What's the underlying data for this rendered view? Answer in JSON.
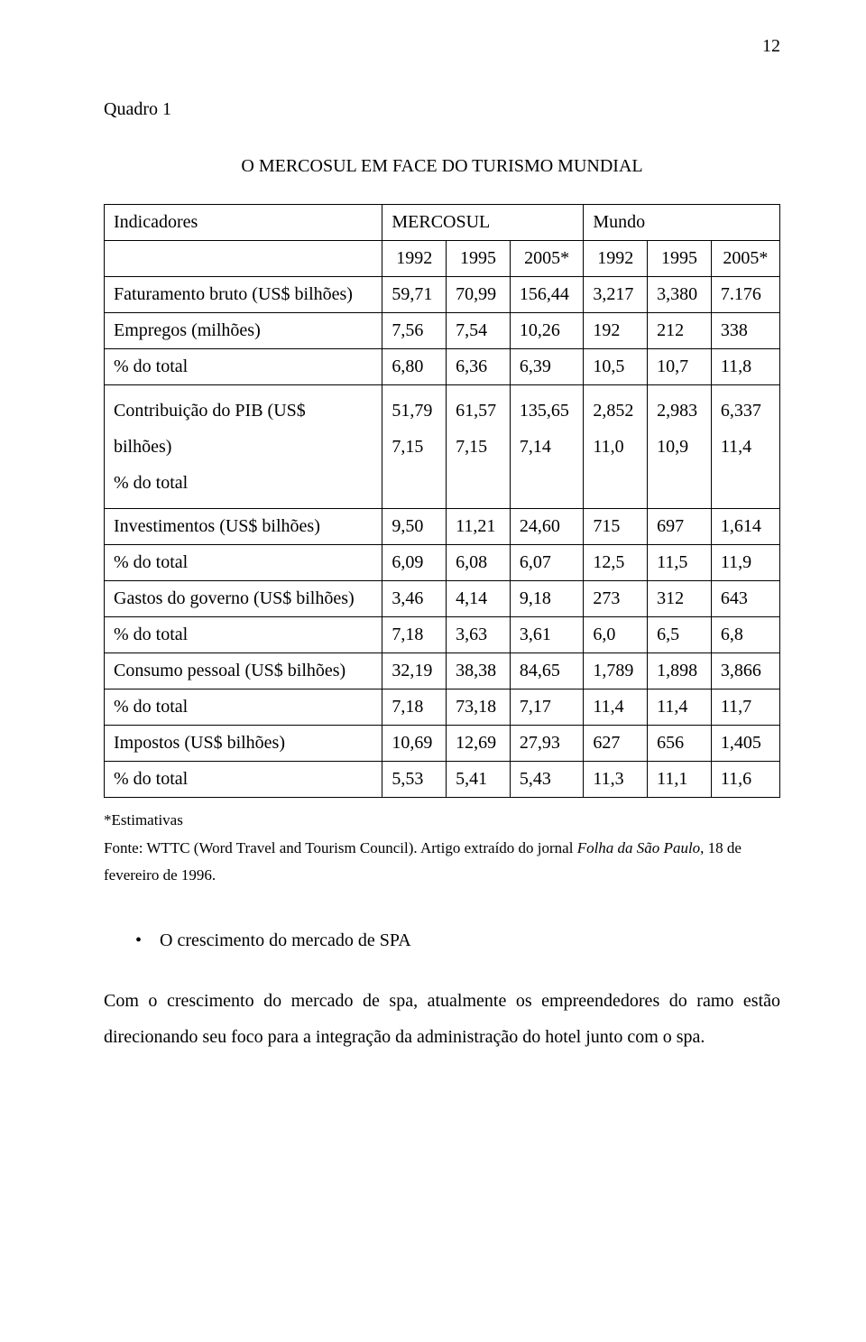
{
  "page_number": "12",
  "section_label": "Quadro 1",
  "table_title": "O MERCOSUL EM FACE DO TURISMO MUNDIAL",
  "table": {
    "columns": {
      "indicadores": "Indicadores",
      "mercosul": "MERCOSUL",
      "mundo": "Mundo"
    },
    "subheads": [
      "1992",
      "1995",
      "2005*",
      "1992",
      "1995",
      "2005*"
    ],
    "rows": [
      {
        "label": "Faturamento bruto (US$ bilhões)",
        "v": [
          "59,71",
          "70,99",
          "156,44",
          "3,217",
          "3,380",
          "7.176"
        ]
      },
      {
        "label": "Empregos (milhões)",
        "v": [
          "7,56",
          "7,54",
          "10,26",
          "192",
          "212",
          "338"
        ]
      },
      {
        "label": "% do total",
        "v": [
          "6,80",
          "6,36",
          "6,39",
          "10,5",
          "10,7",
          "11,8"
        ]
      },
      {
        "label_lines": [
          "Contribuição do PIB (US$",
          "bilhões)",
          "% do total"
        ],
        "v_lines": [
          [
            "51,79",
            "7,15"
          ],
          [
            "61,57",
            "7,15"
          ],
          [
            "135,65",
            "7,14"
          ],
          [
            "2,852",
            "11,0"
          ],
          [
            "2,983",
            "10,9"
          ],
          [
            "6,337",
            "11,4"
          ]
        ]
      },
      {
        "label": "Investimentos (US$ bilhões)",
        "v": [
          "9,50",
          "11,21",
          "24,60",
          "715",
          "697",
          "1,614"
        ]
      },
      {
        "label": "% do total",
        "v": [
          "6,09",
          "6,08",
          "6,07",
          "12,5",
          "11,5",
          "11,9"
        ]
      },
      {
        "label": "Gastos do governo (US$ bilhões)",
        "v": [
          "3,46",
          "4,14",
          "9,18",
          "273",
          "312",
          "643"
        ]
      },
      {
        "label": "% do total",
        "v": [
          "7,18",
          "3,63",
          "3,61",
          "6,0",
          "6,5",
          "6,8"
        ]
      },
      {
        "label": "Consumo pessoal (US$ bilhões)",
        "v": [
          "32,19",
          "38,38",
          "84,65",
          "1,789",
          "1,898",
          "3,866"
        ]
      },
      {
        "label": "% do total",
        "v": [
          "7,18",
          "73,18",
          "7,17",
          "11,4",
          "11,4",
          "11,7"
        ]
      },
      {
        "label": "Impostos (US$ bilhões)",
        "v": [
          "10,69",
          "12,69",
          "27,93",
          "627",
          "656",
          "1,405"
        ]
      },
      {
        "label": "% do total",
        "v": [
          "5,53",
          "5,41",
          "5,43",
          "11,3",
          "11,1",
          "11,6"
        ]
      }
    ]
  },
  "footnote": {
    "estimates": "*Estimativas",
    "source_prefix": "Fonte: WTTC (Word Travel and Tourism Council). Artigo extraído do jornal ",
    "source_italic": "Folha da São Paulo",
    "source_suffix": ", 18 de fevereiro de 1996."
  },
  "bullet_item": "O crescimento do mercado de SPA",
  "body_para": "Com o crescimento do mercado de spa, atualmente os empreendedores do ramo estão direcionando seu foco para a integração da administração do hotel junto com o spa."
}
